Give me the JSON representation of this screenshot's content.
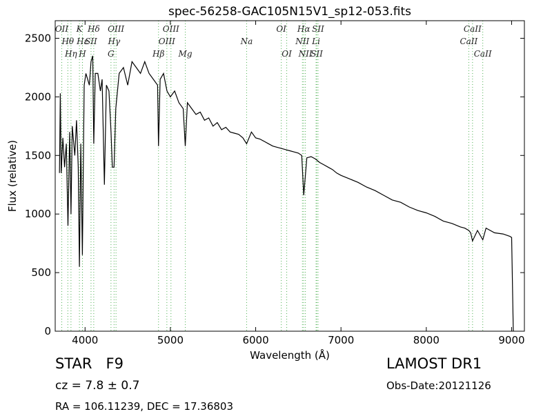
{
  "chart_data": {
    "type": "line",
    "title": "spec-56258-GAC105N15V1_sp12-053.fits",
    "xlabel": "Wavelength (Å)",
    "ylabel": "Flux (relative)",
    "xlim": [
      3650,
      9150
    ],
    "ylim": [
      0,
      2650
    ],
    "xticks": [
      4000,
      5000,
      6000,
      7000,
      8000,
      9000
    ],
    "yticks": [
      0,
      500,
      1000,
      1500,
      2000,
      2500
    ],
    "color": "#000000",
    "line_color": "#4caf50",
    "x": [
      3700,
      3710,
      3720,
      3740,
      3760,
      3780,
      3800,
      3820,
      3835,
      3850,
      3880,
      3900,
      3920,
      3934,
      3950,
      3969,
      3990,
      4010,
      4030,
      4050,
      4070,
      4090,
      4102,
      4120,
      4150,
      4180,
      4200,
      4227,
      4250,
      4280,
      4304,
      4320,
      4340,
      4360,
      4400,
      4450,
      4500,
      4550,
      4600,
      4650,
      4700,
      4750,
      4800,
      4850,
      4861,
      4880,
      4920,
      4960,
      5000,
      5050,
      5100,
      5150,
      5175,
      5200,
      5250,
      5300,
      5350,
      5400,
      5450,
      5500,
      5550,
      5600,
      5650,
      5700,
      5750,
      5800,
      5850,
      5894,
      5950,
      6000,
      6050,
      6100,
      6150,
      6200,
      6250,
      6300,
      6350,
      6400,
      6450,
      6500,
      6540,
      6563,
      6600,
      6650,
      6700,
      6750,
      6800,
      6850,
      6900,
      6950,
      7000,
      7100,
      7200,
      7300,
      7400,
      7500,
      7600,
      7700,
      7800,
      7900,
      8000,
      8100,
      8200,
      8300,
      8400,
      8450,
      8498,
      8520,
      8542,
      8600,
      8662,
      8700,
      8800,
      8900,
      8980,
      9000,
      9020
    ],
    "values": [
      1350,
      2030,
      1350,
      1650,
      1400,
      1600,
      900,
      1700,
      1000,
      1750,
      1500,
      1800,
      1400,
      550,
      1600,
      650,
      2100,
      2200,
      2150,
      2100,
      2300,
      2350,
      1600,
      2200,
      2200,
      2050,
      2150,
      1250,
      2100,
      2050,
      1700,
      1400,
      1400,
      1900,
      2200,
      2250,
      2100,
      2300,
      2250,
      2200,
      2300,
      2200,
      2150,
      2100,
      1580,
      2150,
      2200,
      2050,
      2000,
      2050,
      1950,
      1900,
      1580,
      1950,
      1900,
      1850,
      1870,
      1800,
      1820,
      1750,
      1780,
      1720,
      1740,
      1700,
      1690,
      1680,
      1650,
      1600,
      1700,
      1650,
      1640,
      1620,
      1600,
      1580,
      1570,
      1560,
      1550,
      1540,
      1530,
      1520,
      1500,
      1160,
      1480,
      1490,
      1470,
      1440,
      1420,
      1400,
      1380,
      1350,
      1330,
      1300,
      1270,
      1230,
      1200,
      1160,
      1120,
      1100,
      1060,
      1030,
      1010,
      980,
      940,
      920,
      890,
      880,
      860,
      840,
      770,
      860,
      780,
      880,
      840,
      830,
      810,
      800,
      0
    ],
    "lines": [
      {
        "wavelength": 3727,
        "label": "OII"
      },
      {
        "wavelength": 3798,
        "label": "Hθ"
      },
      {
        "wavelength": 3835,
        "label": "Hη"
      },
      {
        "wavelength": 3934,
        "label": "K"
      },
      {
        "wavelength": 3970,
        "label": "Hε"
      },
      {
        "wavelength": 3969,
        "label": "H"
      },
      {
        "wavelength": 4102,
        "label": "Hδ"
      },
      {
        "wavelength": 4070,
        "label": "SII"
      },
      {
        "wavelength": 4304,
        "label": "G"
      },
      {
        "wavelength": 4363,
        "label": "OIII"
      },
      {
        "wavelength": 4340,
        "label": "Hγ"
      },
      {
        "wavelength": 4861,
        "label": "Hβ"
      },
      {
        "wavelength": 5007,
        "label": "OIII"
      },
      {
        "wavelength": 4959,
        "label": "OIII"
      },
      {
        "wavelength": 5175,
        "label": "Mg"
      },
      {
        "wavelength": 6300,
        "label": "OI"
      },
      {
        "wavelength": 5894,
        "label": "Na"
      },
      {
        "wavelength": 6364,
        "label": "OI"
      },
      {
        "wavelength": 6563,
        "label": "Hα"
      },
      {
        "wavelength": 6548,
        "label": "NII"
      },
      {
        "wavelength": 6583,
        "label": "NII"
      },
      {
        "wavelength": 6731,
        "label": "SII"
      },
      {
        "wavelength": 6708,
        "label": "Li"
      },
      {
        "wavelength": 6716,
        "label": "SII"
      },
      {
        "wavelength": 8542,
        "label": "CaII"
      },
      {
        "wavelength": 8498,
        "label": "CaII"
      },
      {
        "wavelength": 8662,
        "label": "CaII"
      }
    ]
  },
  "annotations": {
    "object": "STAR   F9",
    "redshift": "cz = 7.8 ± 0.7",
    "coordinates": "RA = 106.11239, DEC = 17.36803",
    "survey": "LAMOST DR1",
    "obs_date": "Obs-Date:20121126"
  }
}
